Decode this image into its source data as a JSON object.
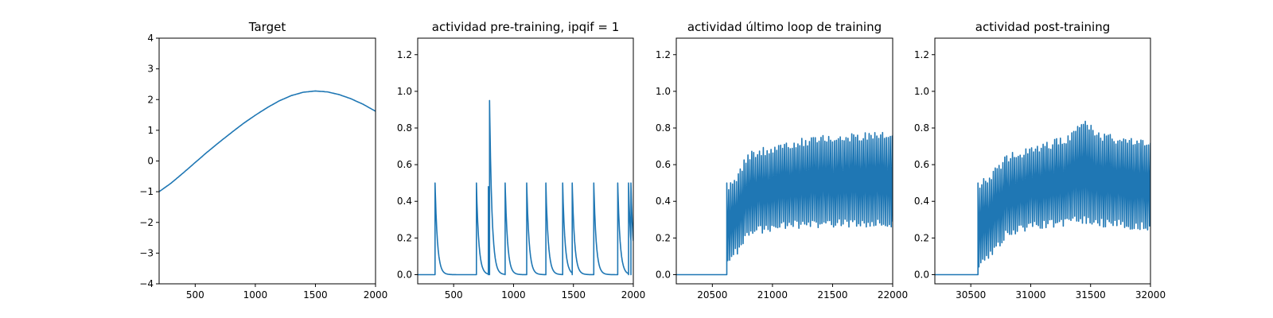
{
  "chart_data": [
    {
      "type": "line",
      "title": "Target",
      "xlabel": "",
      "ylabel": "",
      "xlim": [
        200,
        2000
      ],
      "ylim": [
        -4,
        4
      ],
      "xticks": [
        500,
        1000,
        1500,
        2000
      ],
      "yticks": [
        -4,
        -3,
        -2,
        -1,
        0,
        1,
        2,
        3,
        4
      ],
      "grid": false,
      "series": [
        {
          "color": "#1f77b4",
          "x": [
            200,
            300,
            400,
            500,
            600,
            700,
            800,
            900,
            1000,
            1100,
            1200,
            1300,
            1400,
            1500,
            1600,
            1700,
            1800,
            1900,
            2000
          ],
          "y": [
            -1.0,
            -0.72,
            -0.39,
            -0.05,
            0.29,
            0.61,
            0.92,
            1.22,
            1.49,
            1.74,
            1.96,
            2.13,
            2.24,
            2.28,
            2.25,
            2.16,
            2.02,
            1.84,
            1.62
          ]
        }
      ]
    },
    {
      "type": "line",
      "title": "actividad pre-training, ipqif = 1",
      "xlabel": "",
      "ylabel": "",
      "xlim": [
        200,
        2000
      ],
      "ylim": [
        -0.05,
        1.29
      ],
      "xticks": [
        500,
        1000,
        1500,
        2000
      ],
      "yticks": [
        0.0,
        0.2,
        0.4,
        0.6,
        0.8,
        1.0,
        1.2
      ],
      "grid": false,
      "series": [
        {
          "color": "#1f77b4",
          "baseline_end": 345,
          "spikes": [
            {
              "t": 345,
              "peak": 0.5
            },
            {
              "t": 690,
              "peak": 0.5
            },
            {
              "t": 790,
              "peak": 0.48
            },
            {
              "t": 800,
              "peak": 0.95
            },
            {
              "t": 930,
              "peak": 0.5
            },
            {
              "t": 1110,
              "peak": 0.5
            },
            {
              "t": 1270,
              "peak": 0.5
            },
            {
              "t": 1410,
              "peak": 0.5
            },
            {
              "t": 1490,
              "peak": 0.5
            },
            {
              "t": 1670,
              "peak": 0.5
            },
            {
              "t": 1870,
              "peak": 0.5
            },
            {
              "t": 1960,
              "peak": 0.5
            },
            {
              "t": 1980,
              "peak": 0.5
            }
          ],
          "decay": 20,
          "end_value": 0.07
        }
      ]
    },
    {
      "type": "line",
      "title": "actividad último loop de training",
      "xlabel": "",
      "ylabel": "",
      "xlim": [
        20200,
        22000
      ],
      "ylim": [
        -0.05,
        1.29
      ],
      "xticks": [
        20500,
        21000,
        21500,
        22000
      ],
      "yticks": [
        0.0,
        0.2,
        0.4,
        0.6,
        0.8,
        1.0,
        1.2
      ],
      "grid": false,
      "series": [
        {
          "color": "#1f77b4",
          "onset": 20620,
          "first_peak": 0.5,
          "period": 16,
          "envelope": [
            {
              "t": 20620,
              "hi": 0.5,
              "lo": 0.04
            },
            {
              "t": 20700,
              "hi": 0.55,
              "lo": 0.1
            },
            {
              "t": 20800,
              "hi": 0.67,
              "lo": 0.2
            },
            {
              "t": 21000,
              "hi": 0.71,
              "lo": 0.24
            },
            {
              "t": 21200,
              "hi": 0.74,
              "lo": 0.25
            },
            {
              "t": 21500,
              "hi": 0.77,
              "lo": 0.26
            },
            {
              "t": 22000,
              "hi": 0.78,
              "lo": 0.26
            }
          ]
        }
      ]
    },
    {
      "type": "line",
      "title": "actividad post-training",
      "xlabel": "",
      "ylabel": "",
      "xlim": [
        30200,
        32000
      ],
      "ylim": [
        -0.05,
        1.29
      ],
      "xticks": [
        30500,
        31000,
        31500,
        32000
      ],
      "yticks": [
        0.0,
        0.2,
        0.4,
        0.6,
        0.8,
        1.0,
        1.2
      ],
      "grid": false,
      "series": [
        {
          "color": "#1f77b4",
          "onset": 30560,
          "first_peak": 0.5,
          "period": 16,
          "envelope": [
            {
              "t": 30560,
              "hi": 0.5,
              "lo": 0.03
            },
            {
              "t": 30650,
              "hi": 0.55,
              "lo": 0.08
            },
            {
              "t": 30800,
              "hi": 0.66,
              "lo": 0.2
            },
            {
              "t": 31000,
              "hi": 0.7,
              "lo": 0.24
            },
            {
              "t": 31300,
              "hi": 0.76,
              "lo": 0.26
            },
            {
              "t": 31450,
              "hi": 0.85,
              "lo": 0.28
            },
            {
              "t": 31600,
              "hi": 0.77,
              "lo": 0.26
            },
            {
              "t": 32000,
              "hi": 0.74,
              "lo": 0.24
            }
          ]
        }
      ]
    }
  ]
}
